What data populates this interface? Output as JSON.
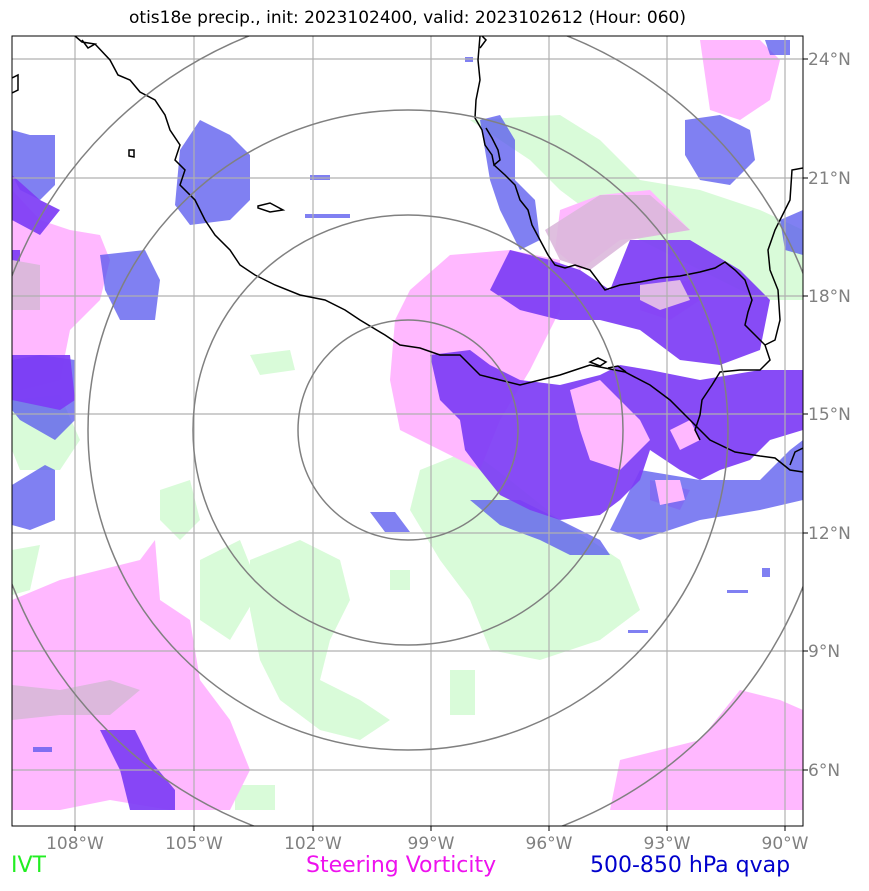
{
  "title": "otis18e precip., init: 2023102400, valid: 2023102612 (Hour: 060)",
  "lon_labels": [
    "108°W",
    "105°W",
    "102°W",
    "99°W",
    "96°W",
    "93°W",
    "90°W"
  ],
  "lat_labels": [
    "24°N",
    "21°N",
    "18°N",
    "15°N",
    "12°N",
    "9°N",
    "6°N"
  ],
  "legend": [
    {
      "label": "IVT",
      "color": "#22ee22"
    },
    {
      "label": "Steering Vorticity",
      "color": "#ee11ee"
    },
    {
      "label": "500-850 hPa qvap",
      "color": "#0000cc"
    }
  ],
  "colors": {
    "ivt_fill": "#d9fbd9",
    "vorticity_fill": "#ffb8ff",
    "qvap_fill": "#6464f0",
    "overlap_fill": "#7d3cf5",
    "range_rings": "#808080",
    "coastline": "#000000",
    "gridlines": "#b0b0b0"
  }
}
